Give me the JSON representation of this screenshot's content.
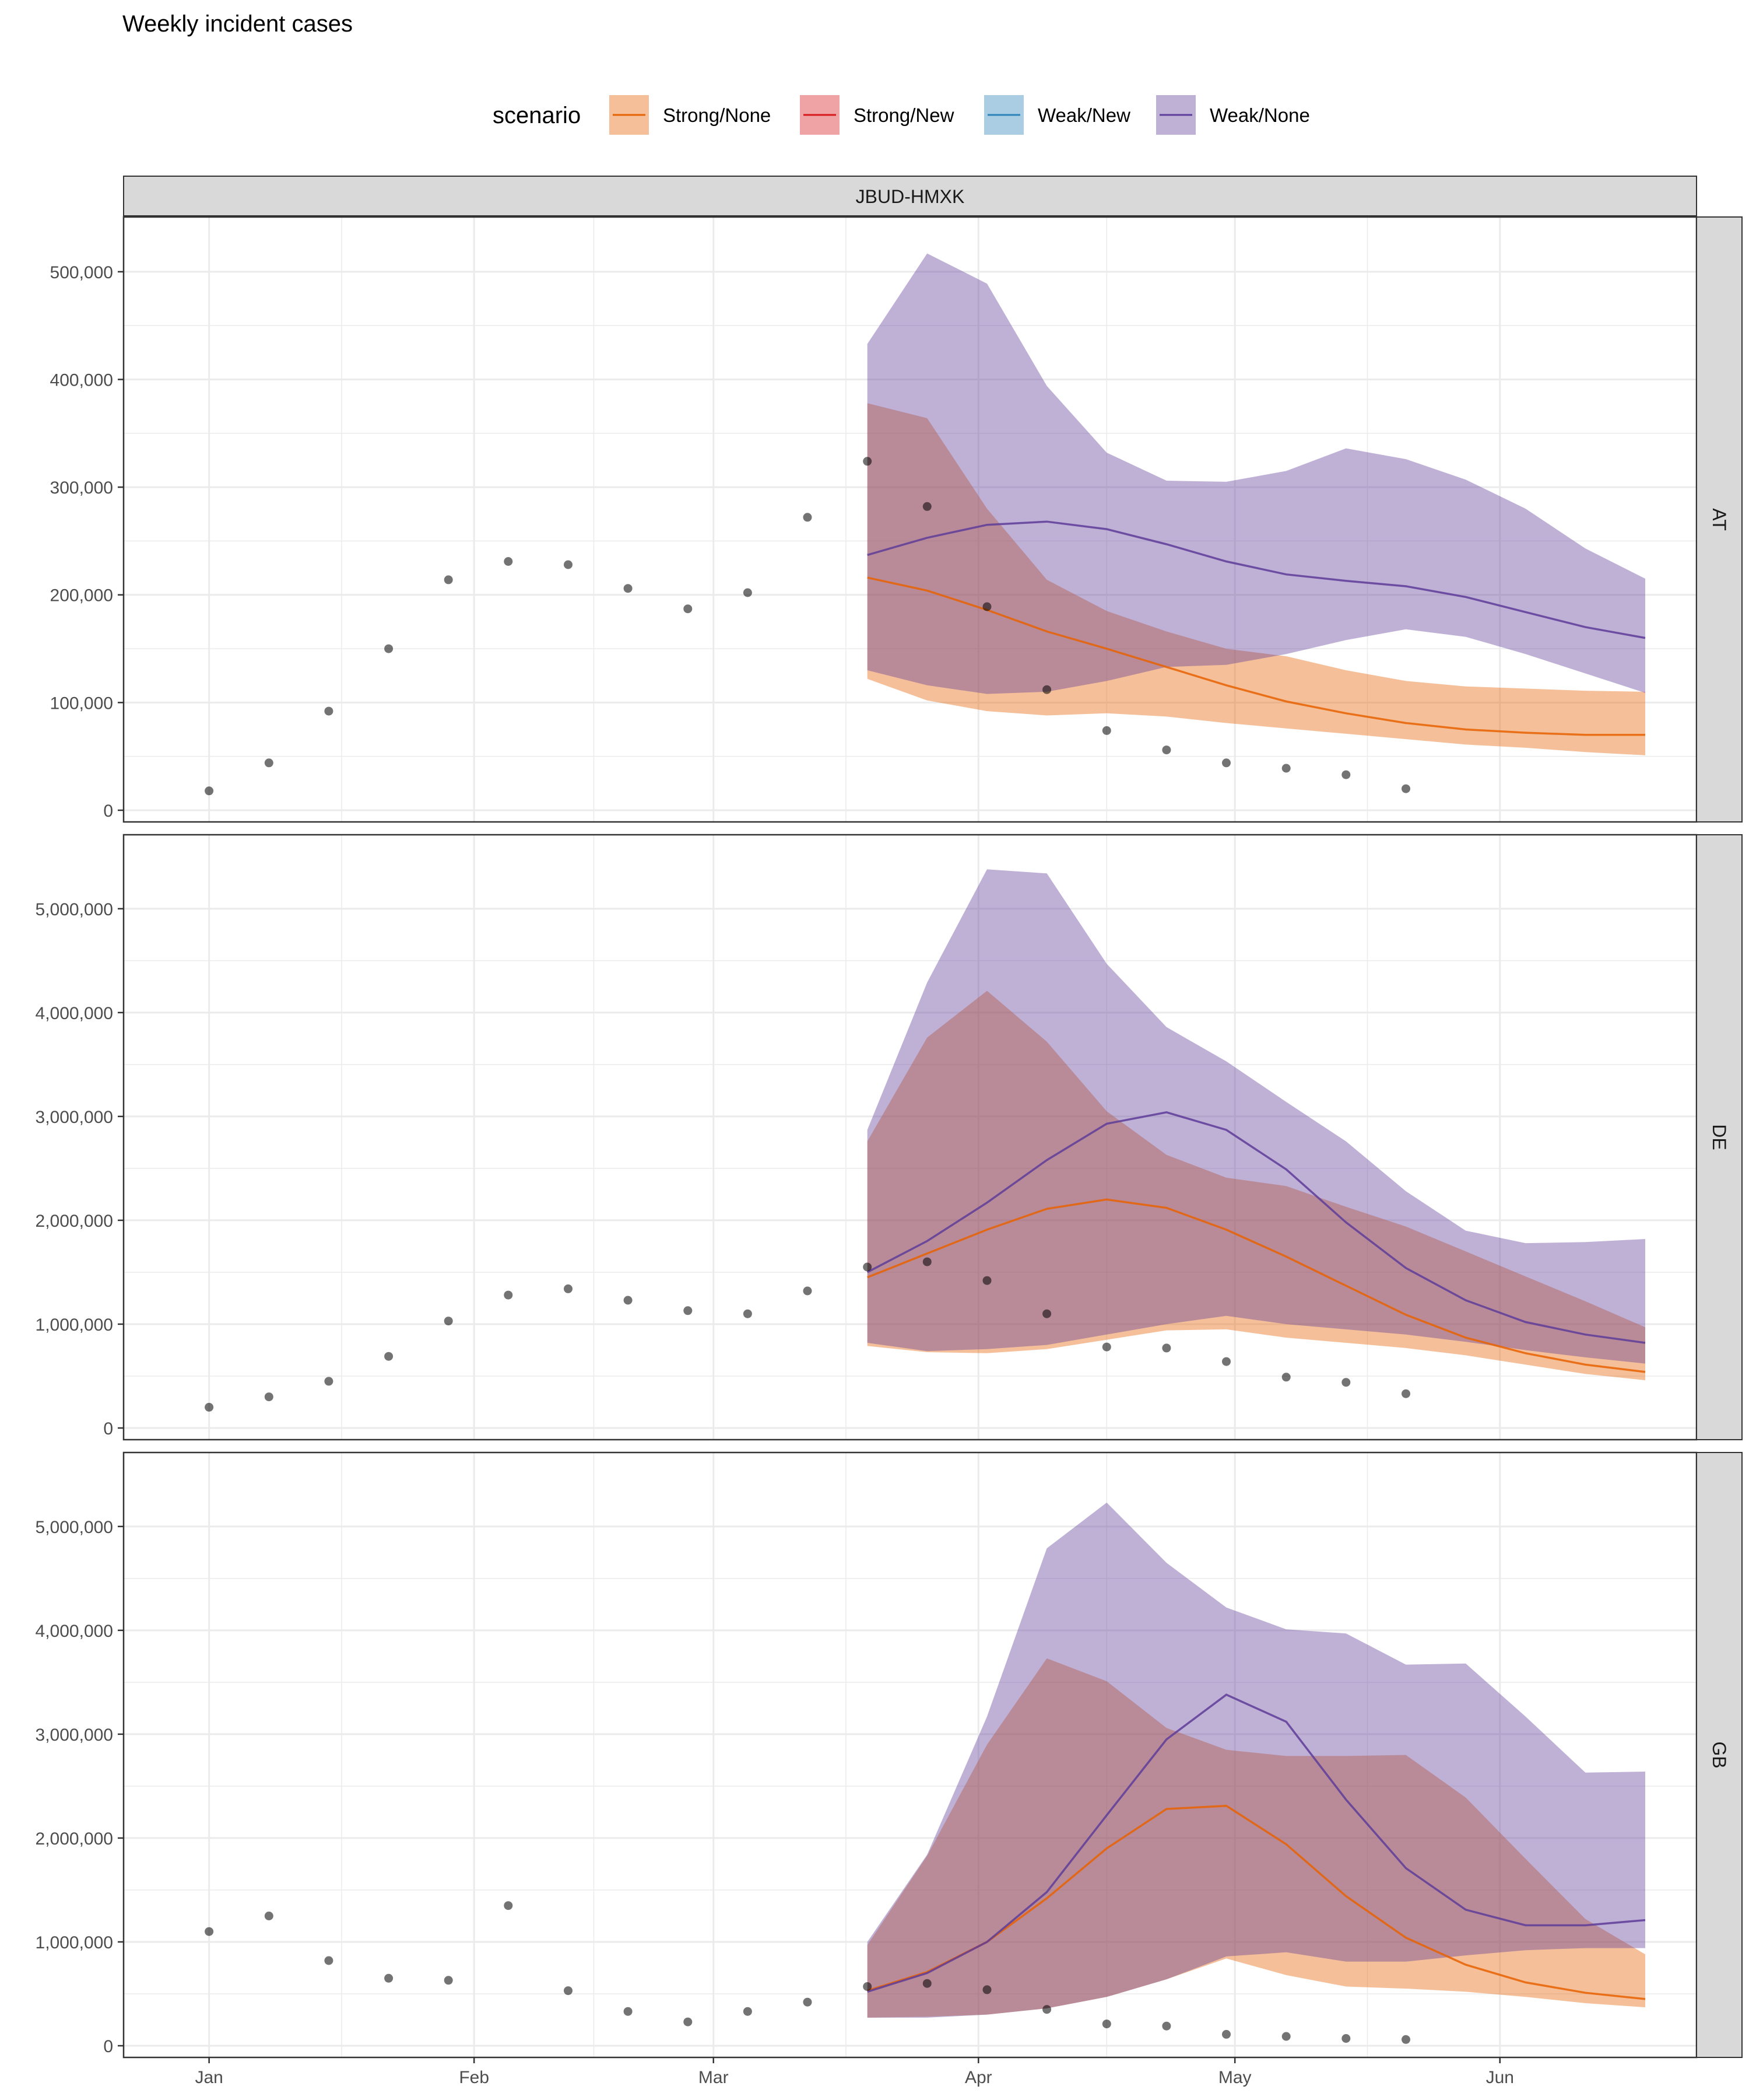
{
  "chart_data": {
    "type": "area",
    "title": "Weekly incident cases",
    "legend": {
      "title": "scenario",
      "placement": "top",
      "entries": [
        {
          "name": "Strong/None",
          "color": "#E66101"
        },
        {
          "name": "Strong/New",
          "color": "#D7191C"
        },
        {
          "name": "Weak/New",
          "color": "#2B83BA"
        },
        {
          "name": "Weak/None",
          "color": "#5E3C99"
        }
      ]
    },
    "facet_column": "JBUD-HMXK",
    "x_ticks": [
      {
        "label": "Jan",
        "date": "2022-01-01"
      },
      {
        "label": "Feb",
        "date": "2022-02-01"
      },
      {
        "label": "Mar",
        "date": "2022-03-01"
      },
      {
        "label": "Apr",
        "date": "2022-04-01"
      },
      {
        "label": "May",
        "date": "2022-05-01"
      },
      {
        "label": "Jun",
        "date": "2022-06-01"
      }
    ],
    "xlim": [
      "2021-12-22",
      "2022-06-24"
    ],
    "grid": true,
    "observed_dates": [
      "2022-01-01",
      "2022-01-08",
      "2022-01-15",
      "2022-01-22",
      "2022-01-29",
      "2022-02-05",
      "2022-02-12",
      "2022-02-19",
      "2022-02-26",
      "2022-03-05",
      "2022-03-12",
      "2022-03-19",
      "2022-03-26",
      "2022-04-02",
      "2022-04-09",
      "2022-04-16",
      "2022-04-23",
      "2022-04-30",
      "2022-05-07",
      "2022-05-14",
      "2022-05-21"
    ],
    "projection_dates": [
      "2022-03-19",
      "2022-03-26",
      "2022-04-02",
      "2022-04-09",
      "2022-04-16",
      "2022-04-23",
      "2022-04-30",
      "2022-05-07",
      "2022-05-14",
      "2022-05-21",
      "2022-05-28",
      "2022-06-04",
      "2022-06-11",
      "2022-06-18"
    ],
    "panels": [
      {
        "label": "AT",
        "ylim": [
          0,
          540000
        ],
        "y_ticks": [
          {
            "value": 0,
            "label": "0"
          },
          {
            "value": 100000,
            "label": "100,000"
          },
          {
            "value": 200000,
            "label": "200,000"
          },
          {
            "value": 300000,
            "label": "300,000"
          },
          {
            "value": 400000,
            "label": "400,000"
          },
          {
            "value": 500000,
            "label": "500,000"
          }
        ],
        "observed": [
          18000,
          44000,
          92000,
          150000,
          214000,
          231000,
          228000,
          206000,
          187000,
          202000,
          272000,
          324000,
          282000,
          189000,
          112000,
          74000,
          56000,
          44000,
          39000,
          33000,
          20000
        ],
        "series": [
          {
            "name": "Strong/None",
            "median": [
              216000,
              204000,
              186000,
              166000,
              150000,
              133000,
              116000,
              101000,
              90000,
              81000,
              75000,
              72000,
              70000,
              70000
            ],
            "lower": [
              122000,
              102000,
              92000,
              88000,
              90000,
              87000,
              81000,
              76000,
              71000,
              66000,
              61000,
              58000,
              54000,
              51000
            ],
            "upper": [
              378000,
              364000,
              280000,
              214000,
              185000,
              166000,
              150000,
              143000,
              130000,
              120000,
              115000,
              113000,
              111000,
              110000
            ]
          },
          {
            "name": "Weak/None",
            "median": [
              237000,
              253000,
              265000,
              268000,
              261000,
              247000,
              231000,
              219000,
              213000,
              208000,
              198000,
              184000,
              170000,
              160000
            ],
            "lower": [
              130000,
              116000,
              108000,
              110000,
              120000,
              133000,
              135000,
              145000,
              158000,
              168000,
              161000,
              145000,
              127000,
              109000
            ],
            "upper": [
              433000,
              517000,
              489000,
              394000,
              332000,
              306000,
              305000,
              315000,
              336000,
              326000,
              307000,
              280000,
              243000,
              215000
            ]
          }
        ]
      },
      {
        "label": "DE",
        "ylim": [
          0,
          5600000
        ],
        "y_ticks": [
          {
            "value": 0,
            "label": "0"
          },
          {
            "value": 1000000,
            "label": "1,000,000"
          },
          {
            "value": 2000000,
            "label": "2,000,000"
          },
          {
            "value": 3000000,
            "label": "3,000,000"
          },
          {
            "value": 4000000,
            "label": "4,000,000"
          },
          {
            "value": 5000000,
            "label": "5,000,000"
          }
        ],
        "observed": [
          200000,
          300000,
          450000,
          690000,
          1030000,
          1280000,
          1340000,
          1230000,
          1130000,
          1100000,
          1320000,
          1550000,
          1600000,
          1420000,
          1100000,
          780000,
          770000,
          640000,
          490000,
          440000,
          330000
        ],
        "series": [
          {
            "name": "Strong/None",
            "median": [
              1450000,
              1680000,
              1910000,
              2110000,
              2200000,
              2120000,
              1910000,
              1650000,
              1370000,
              1090000,
              870000,
              720000,
              610000,
              540000
            ],
            "lower": [
              790000,
              730000,
              720000,
              760000,
              850000,
              940000,
              950000,
              870000,
              820000,
              770000,
              700000,
              610000,
              520000,
              460000
            ],
            "upper": [
              2760000,
              3760000,
              4210000,
              3720000,
              3050000,
              2630000,
              2410000,
              2330000,
              2130000,
              1940000,
              1700000,
              1460000,
              1220000,
              970000
            ]
          },
          {
            "name": "Weak/None",
            "median": [
              1500000,
              1800000,
              2170000,
              2580000,
              2930000,
              3040000,
              2870000,
              2490000,
              1980000,
              1540000,
              1230000,
              1020000,
              900000,
              820000
            ],
            "lower": [
              820000,
              740000,
              760000,
              800000,
              900000,
              1000000,
              1080000,
              1000000,
              950000,
              900000,
              830000,
              750000,
              680000,
              620000
            ],
            "upper": [
              2870000,
              4290000,
              5380000,
              5340000,
              4470000,
              3860000,
              3530000,
              3140000,
              2760000,
              2280000,
              1900000,
              1780000,
              1790000,
              1820000
            ]
          }
        ]
      },
      {
        "label": "GB",
        "ylim": [
          0,
          5600000
        ],
        "y_ticks": [
          {
            "value": 0,
            "label": "0"
          },
          {
            "value": 1000000,
            "label": "1,000,000"
          },
          {
            "value": 2000000,
            "label": "2,000,000"
          },
          {
            "value": 3000000,
            "label": "3,000,000"
          },
          {
            "value": 4000000,
            "label": "4,000,000"
          },
          {
            "value": 5000000,
            "label": "5,000,000"
          }
        ],
        "observed": [
          1100000,
          1250000,
          820000,
          650000,
          630000,
          1350000,
          530000,
          330000,
          230000,
          330000,
          420000,
          570000,
          600000,
          540000,
          350000,
          210000,
          190000,
          110000,
          90000,
          70000,
          60000
        ],
        "series": [
          {
            "name": "Strong/None",
            "median": [
              530000,
              710000,
              1000000,
              1420000,
              1900000,
              2280000,
              2310000,
              1940000,
              1440000,
              1040000,
              780000,
              610000,
              510000,
              450000
            ],
            "lower": [
              270000,
              280000,
              300000,
              360000,
              470000,
              640000,
              840000,
              680000,
              570000,
              550000,
              520000,
              470000,
              410000,
              370000
            ],
            "upper": [
              970000,
              1830000,
              2900000,
              3730000,
              3510000,
              3060000,
              2850000,
              2790000,
              2790000,
              2800000,
              2390000,
              1800000,
              1220000,
              880000
            ]
          },
          {
            "name": "Weak/None",
            "median": [
              520000,
              700000,
              1000000,
              1480000,
              2220000,
              2950000,
              3380000,
              3120000,
              2370000,
              1710000,
              1310000,
              1160000,
              1160000,
              1210000
            ],
            "lower": [
              270000,
              270000,
              300000,
              360000,
              470000,
              640000,
              860000,
              900000,
              810000,
              810000,
              870000,
              920000,
              940000,
              940000
            ],
            "upper": [
              1000000,
              1840000,
              3170000,
              4790000,
              5230000,
              4650000,
              4220000,
              4010000,
              3970000,
              3670000,
              3680000,
              3170000,
              2630000,
              2640000
            ]
          }
        ]
      }
    ]
  }
}
